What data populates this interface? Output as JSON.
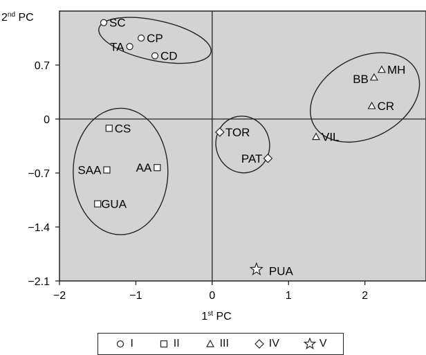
{
  "chart_data": {
    "type": "scatter",
    "title": "",
    "xlabel": "1st PC",
    "xlabel_main": "1",
    "xlabel_sup": "st",
    "xlabel_rest": " PC",
    "ylabel": "2nd PC",
    "ylabel_main": "2",
    "ylabel_sup": "nd",
    "ylabel_rest": " PC",
    "xlim": [
      -2.0,
      2.8
    ],
    "ylim": [
      -2.1,
      1.4
    ],
    "xticks": [
      -2,
      -1,
      0,
      1,
      2
    ],
    "xtick_labels": [
      "−2",
      "−1",
      "0",
      "1",
      "2"
    ],
    "yticks": [
      0.7,
      0,
      -0.7,
      -1.4,
      -2.1
    ],
    "ytick_labels": [
      "0.7",
      "0",
      "−0.7",
      "−1.4",
      "−2.1"
    ],
    "background": "#d3d3d3",
    "grid": false,
    "zero_lines": true,
    "series": [
      {
        "name": "I",
        "marker": "circle",
        "points": [
          {
            "label": "SC",
            "x": -1.42,
            "y": 1.25
          },
          {
            "label": "TA",
            "x": -1.08,
            "y": 0.94
          },
          {
            "label": "CP",
            "x": -0.93,
            "y": 1.05
          },
          {
            "label": "CD",
            "x": -0.75,
            "y": 0.82
          }
        ]
      },
      {
        "name": "II",
        "marker": "square",
        "points": [
          {
            "label": "CS",
            "x": -1.35,
            "y": -0.12
          },
          {
            "label": "SAA",
            "x": -1.38,
            "y": -0.66
          },
          {
            "label": "AA",
            "x": -0.72,
            "y": -0.63
          },
          {
            "label": "GUA",
            "x": -1.5,
            "y": -1.1
          }
        ]
      },
      {
        "name": "III",
        "marker": "triangle",
        "points": [
          {
            "label": "MH",
            "x": 2.22,
            "y": 0.64
          },
          {
            "label": "BB",
            "x": 2.12,
            "y": 0.54
          },
          {
            "label": "CR",
            "x": 2.09,
            "y": 0.17
          },
          {
            "label": "VIL",
            "x": 1.36,
            "y": -0.23
          }
        ]
      },
      {
        "name": "IV",
        "marker": "diamond",
        "points": [
          {
            "label": "TOR",
            "x": 0.1,
            "y": -0.17
          },
          {
            "label": "PAT",
            "x": 0.73,
            "y": -0.51
          }
        ]
      },
      {
        "name": "V",
        "marker": "star",
        "points": [
          {
            "label": "PUA",
            "x": 0.58,
            "y": -1.95
          }
        ]
      }
    ],
    "clusters": [
      {
        "cx": -0.75,
        "cy": 1.02,
        "rx": 0.75,
        "ry": 0.26,
        "rotate": 12
      },
      {
        "cx": -1.2,
        "cy": -0.68,
        "rx": 0.62,
        "ry": 0.82,
        "rotate": 0
      },
      {
        "cx": 2.0,
        "cy": 0.28,
        "rx": 0.76,
        "ry": 0.52,
        "rotate": -28
      },
      {
        "cx": 0.4,
        "cy": -0.33,
        "rx": 0.35,
        "ry": 0.37,
        "rotate": -18
      }
    ],
    "legend": {
      "position": "bottom",
      "entries": [
        {
          "symbol": "circle",
          "label": "I"
        },
        {
          "symbol": "square",
          "label": "II"
        },
        {
          "symbol": "triangle",
          "label": "III"
        },
        {
          "symbol": "diamond",
          "label": "IV"
        },
        {
          "symbol": "star",
          "label": "V"
        }
      ]
    }
  }
}
